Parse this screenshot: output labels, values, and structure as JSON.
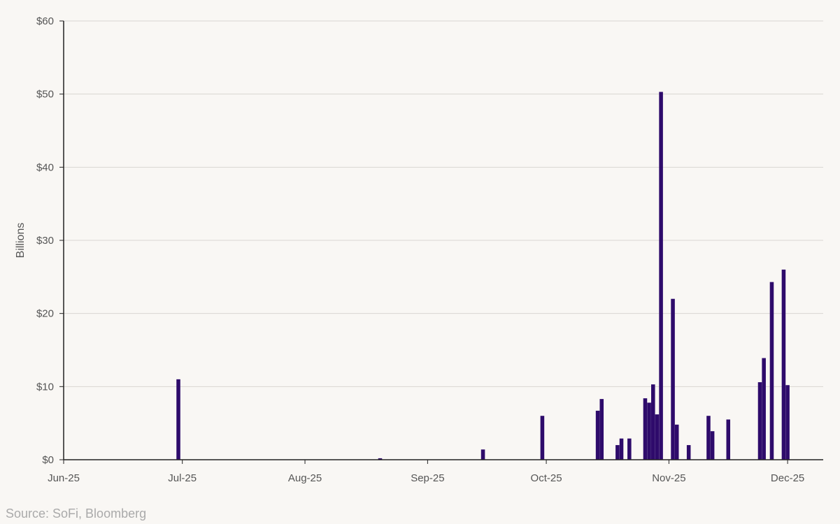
{
  "chart_data": {
    "type": "bar",
    "ylabel": "Billions",
    "ylim": [
      0,
      60
    ],
    "yticks": [
      0,
      10,
      20,
      30,
      40,
      50,
      60
    ],
    "ytick_labels": [
      "$0",
      "$10",
      "$20",
      "$30",
      "$40",
      "$50",
      "$60"
    ],
    "xlim": [
      "2025-06-01",
      "2025-12-10"
    ],
    "xticks": [
      {
        "date": "2025-06-01",
        "label": "Jun-25"
      },
      {
        "date": "2025-07-01",
        "label": "Jul-25"
      },
      {
        "date": "2025-08-01",
        "label": "Aug-25"
      },
      {
        "date": "2025-09-01",
        "label": "Sep-25"
      },
      {
        "date": "2025-10-01",
        "label": "Oct-25"
      },
      {
        "date": "2025-11-01",
        "label": "Nov-25"
      },
      {
        "date": "2025-12-01",
        "label": "Dec-25"
      }
    ],
    "grid": true,
    "bar_color": "#2e0b6b",
    "points": [
      {
        "date": "2025-06-30",
        "value": 11.0
      },
      {
        "date": "2025-08-20",
        "value": 0.2
      },
      {
        "date": "2025-09-15",
        "value": 1.4
      },
      {
        "date": "2025-09-30",
        "value": 6.0
      },
      {
        "date": "2025-10-14",
        "value": 6.7
      },
      {
        "date": "2025-10-15",
        "value": 8.3
      },
      {
        "date": "2025-10-19",
        "value": 2.0
      },
      {
        "date": "2025-10-20",
        "value": 2.9
      },
      {
        "date": "2025-10-22",
        "value": 2.9
      },
      {
        "date": "2025-10-26",
        "value": 8.4
      },
      {
        "date": "2025-10-27",
        "value": 7.8
      },
      {
        "date": "2025-10-28",
        "value": 10.3
      },
      {
        "date": "2025-10-29",
        "value": 6.2
      },
      {
        "date": "2025-10-30",
        "value": 50.3
      },
      {
        "date": "2025-11-02",
        "value": 22.0
      },
      {
        "date": "2025-11-03",
        "value": 4.8
      },
      {
        "date": "2025-11-06",
        "value": 2.0
      },
      {
        "date": "2025-11-11",
        "value": 6.0
      },
      {
        "date": "2025-11-12",
        "value": 3.9
      },
      {
        "date": "2025-11-16",
        "value": 5.5
      },
      {
        "date": "2025-11-24",
        "value": 10.6
      },
      {
        "date": "2025-11-25",
        "value": 13.9
      },
      {
        "date": "2025-11-27",
        "value": 24.3
      },
      {
        "date": "2025-11-30",
        "value": 26.0
      },
      {
        "date": "2025-12-01",
        "value": 10.2
      }
    ]
  },
  "footer": {
    "source": "Source: SoFi, Bloomberg"
  }
}
